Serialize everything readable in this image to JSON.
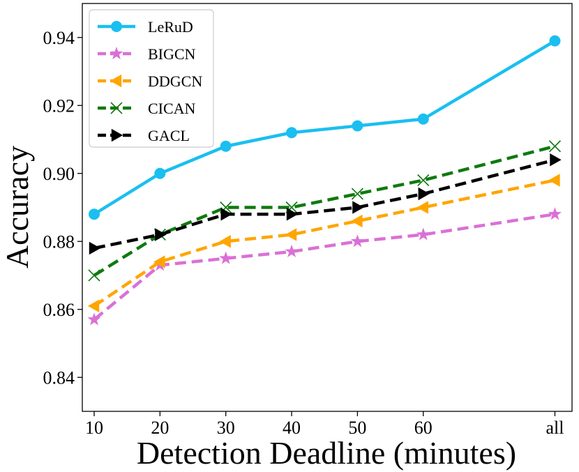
{
  "chart_data": {
    "type": "line",
    "title": "",
    "xlabel": "Detection Deadline (minutes)",
    "ylabel": "Accuracy",
    "categories": [
      "10",
      "20",
      "30",
      "40",
      "50",
      "60",
      "all"
    ],
    "x_positions": [
      10,
      20,
      30,
      40,
      50,
      60,
      80
    ],
    "xlim": [
      8.2,
      82.6
    ],
    "ylim": [
      0.83,
      0.95
    ],
    "yticks": [
      0.84,
      0.86,
      0.88,
      0.9,
      0.92,
      0.94
    ],
    "ytick_labels": [
      "0.84",
      "0.86",
      "0.88",
      "0.90",
      "0.92",
      "0.94"
    ],
    "grid": false,
    "legend_position": "top-left",
    "series": [
      {
        "name": "LeRuD",
        "color": "#1ABFF0",
        "dash": "solid",
        "marker": "circle",
        "values": [
          0.888,
          0.9,
          0.908,
          0.912,
          0.914,
          0.916,
          0.939
        ]
      },
      {
        "name": "BIGCN",
        "color": "#DA70D6",
        "dash": "dashed",
        "marker": "star",
        "values": [
          0.857,
          0.873,
          0.875,
          0.877,
          0.88,
          0.882,
          0.888
        ]
      },
      {
        "name": "DDGCN",
        "color": "#FFA500",
        "dash": "dashed",
        "marker": "triangle-left",
        "values": [
          0.861,
          0.874,
          0.88,
          0.882,
          0.886,
          0.89,
          0.898
        ]
      },
      {
        "name": "CICAN",
        "color": "#0F7A0F",
        "dash": "dashed",
        "marker": "x",
        "values": [
          0.87,
          0.882,
          0.89,
          0.89,
          0.894,
          0.898,
          0.908
        ]
      },
      {
        "name": "GACL",
        "color": "#000000",
        "dash": "dashed",
        "marker": "triangle-right",
        "values": [
          0.878,
          0.882,
          0.888,
          0.888,
          0.89,
          0.894,
          0.904
        ]
      }
    ]
  }
}
